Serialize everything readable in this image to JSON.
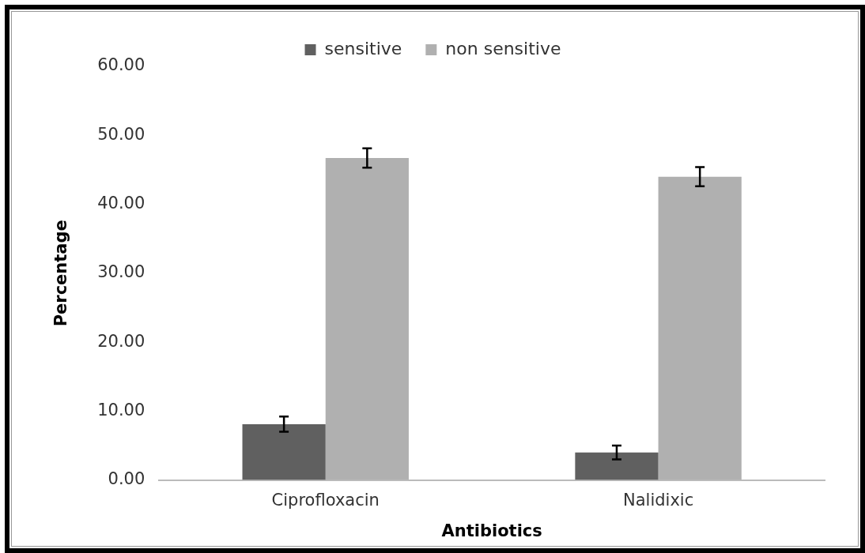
{
  "chart_data": {
    "type": "bar",
    "xlabel": "Antibiotics",
    "ylabel": "Percentage",
    "categories": [
      "Ciprofloxacin",
      "Nalidixic"
    ],
    "series": [
      {
        "name": "sensitive",
        "color": "#606060",
        "values": [
          8.1,
          4.0
        ],
        "errors": [
          1.1,
          1.0
        ]
      },
      {
        "name": "non sensitive",
        "color": "#b0b0b0",
        "values": [
          46.7,
          44.0
        ],
        "errors": [
          1.4,
          1.4
        ]
      }
    ],
    "ylim": [
      0,
      60
    ],
    "yticks": [
      {
        "value": 0,
        "label": "0.00"
      },
      {
        "value": 10,
        "label": "10.00"
      },
      {
        "value": 20,
        "label": "20.00"
      },
      {
        "value": 30,
        "label": "30.00"
      },
      {
        "value": 40,
        "label": "40.00"
      },
      {
        "value": 50,
        "label": "50.00"
      },
      {
        "value": 60,
        "label": "60.00"
      }
    ],
    "grid": false,
    "legend": "top"
  }
}
